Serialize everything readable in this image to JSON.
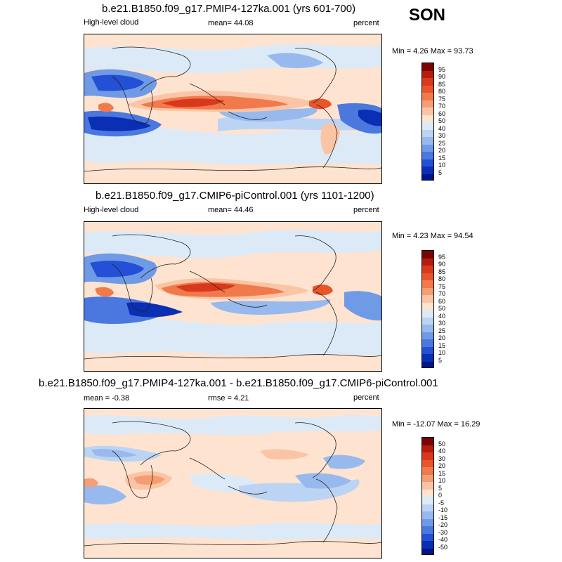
{
  "season": "SON",
  "panels": [
    {
      "id": "top",
      "title": "b.e21.B1850.f09_g17.PMIP4-127ka.001 (yrs 601-700)",
      "left_label": "High-level cloud",
      "stat_label": "mean=  44.08",
      "units": "percent",
      "minmax": "Min =   4.26 Max =  93.73"
    },
    {
      "id": "mid",
      "title": "b.e21.B1850.f09_g17.CMIP6-piControl.001 (yrs 1101-1200)",
      "left_label": "High-level cloud",
      "stat_label": "mean=  44.46",
      "units": "percent",
      "minmax": "Min =   4.23 Max =  94.54"
    },
    {
      "id": "bot",
      "title": "b.e21.B1850.f09_g17.PMIP4-127ka.001 - b.e21.B1850.f09_g17.CMIP6-piControl.001",
      "left_label": "mean =  -0.38",
      "stat_label": "rmse =   4.21",
      "units": "percent",
      "minmax": "Min = -12.07 Max =  16.29"
    }
  ],
  "chart_data": [
    {
      "type": "heatmap",
      "title": "b.e21.B1850.f09_g17.PMIP4-127ka.001 (yrs 601-700)",
      "variable": "High-level cloud",
      "units": "percent",
      "mean": 44.08,
      "min": 4.26,
      "max": 93.73,
      "colorbar_levels": [
        95,
        90,
        85,
        80,
        75,
        70,
        60,
        50,
        40,
        30,
        25,
        20,
        15,
        10,
        5
      ],
      "colorbar_colors": [
        "#7a0403",
        "#b51c0e",
        "#d8381c",
        "#e8552b",
        "#f07a4b",
        "#f59d73",
        "#fbc5a5",
        "#fde3d0",
        "#dceaf8",
        "#bcd4f4",
        "#97b9ee",
        "#6f9ae6",
        "#4a78df",
        "#2350d4",
        "#0a2eb4",
        "#00158a"
      ]
    },
    {
      "type": "heatmap",
      "title": "b.e21.B1850.f09_g17.CMIP6-piControl.001 (yrs 1101-1200)",
      "variable": "High-level cloud",
      "units": "percent",
      "mean": 44.46,
      "min": 4.23,
      "max": 94.54,
      "colorbar_levels": [
        95,
        90,
        85,
        80,
        75,
        70,
        60,
        50,
        40,
        30,
        25,
        20,
        15,
        10,
        5
      ],
      "colorbar_colors": [
        "#7a0403",
        "#b51c0e",
        "#d8381c",
        "#e8552b",
        "#f07a4b",
        "#f59d73",
        "#fbc5a5",
        "#fde3d0",
        "#dceaf8",
        "#bcd4f4",
        "#97b9ee",
        "#6f9ae6",
        "#4a78df",
        "#2350d4",
        "#0a2eb4",
        "#00158a"
      ]
    },
    {
      "type": "heatmap",
      "title": "b.e21.B1850.f09_g17.PMIP4-127ka.001 - b.e21.B1850.f09_g17.CMIP6-piControl.001",
      "units": "percent",
      "mean": -0.38,
      "rmse": 4.21,
      "min": -12.07,
      "max": 16.29,
      "colorbar_levels": [
        50,
        40,
        30,
        20,
        15,
        10,
        5,
        0,
        -5,
        -10,
        -15,
        -20,
        -30,
        -40,
        -50
      ],
      "colorbar_colors": [
        "#7a0403",
        "#b51c0e",
        "#d8381c",
        "#e8552b",
        "#f07a4b",
        "#f59d73",
        "#fbc5a5",
        "#fde3d0",
        "#dceaf8",
        "#bcd4f4",
        "#97b9ee",
        "#6f9ae6",
        "#4a78df",
        "#2350d4",
        "#0a2eb4",
        "#00158a"
      ]
    }
  ]
}
